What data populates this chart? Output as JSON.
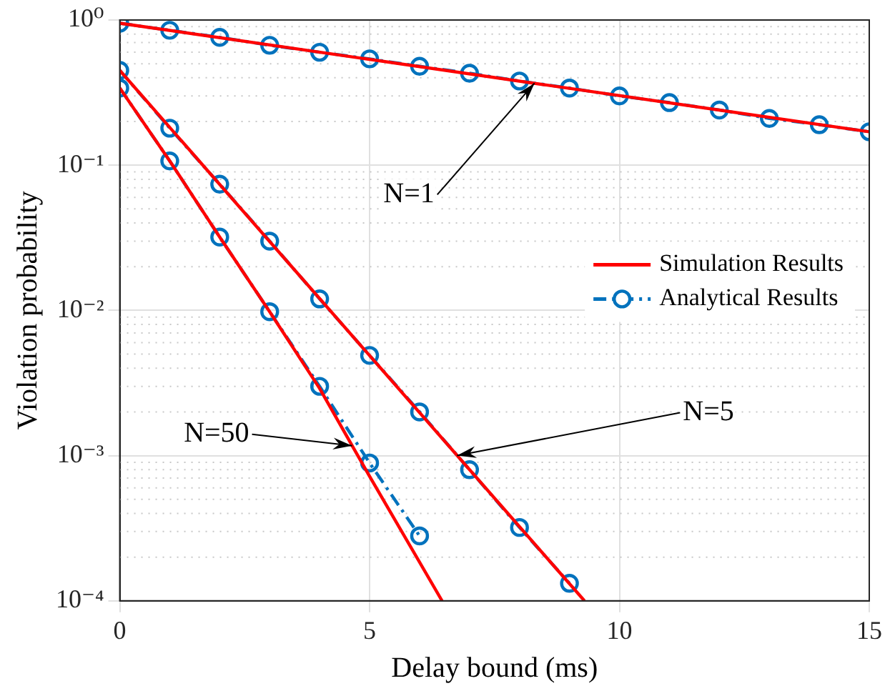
{
  "chart_data": {
    "type": "line",
    "xlabel": "Delay bound (ms)",
    "ylabel": "Violation probability",
    "log": "y",
    "grid": true,
    "legend": "right",
    "xlim": [
      0,
      15
    ],
    "xticks": [
      0,
      5,
      10,
      15
    ],
    "ylim": [
      0.0001,
      1
    ],
    "yticks": [
      {
        "value": 0.0001,
        "label": "10⁻⁴"
      },
      {
        "value": 0.001,
        "label": "10⁻³"
      },
      {
        "value": 0.01,
        "label": "10⁻²"
      },
      {
        "value": 0.1,
        "label": "10⁻¹"
      },
      {
        "value": 1,
        "label": "10⁰"
      }
    ],
    "series": [
      {
        "name": "Simulation Results",
        "color": "#ff0000",
        "line_style": "solid",
        "marker": "none",
        "x": [
          0,
          15
        ],
        "values": [
          0.95,
          0.17
        ]
      },
      {
        "name": "Analytical Results",
        "color": "#0072bd",
        "line_style": "dashed",
        "marker": "circle",
        "x": [
          0,
          1,
          2,
          3,
          4,
          5,
          6,
          7,
          8,
          9,
          10,
          11,
          12,
          13,
          14,
          15
        ],
        "values": [
          0.95,
          0.85,
          0.76,
          0.67,
          0.6,
          0.54,
          0.48,
          0.43,
          0.38,
          0.34,
          0.3,
          0.27,
          0.24,
          0.21,
          0.19,
          0.17
        ]
      },
      {
        "color": "#ff0000",
        "line_style": "solid",
        "marker": "none",
        "x": [
          0,
          9.3
        ],
        "values": [
          0.45,
          0.0001
        ]
      },
      {
        "color": "#0072bd",
        "line_style": "dashed",
        "marker": "circle",
        "x": [
          0,
          1,
          2,
          3,
          4,
          5,
          6,
          7,
          8,
          9
        ],
        "values": [
          0.45,
          0.18,
          0.074,
          0.03,
          0.012,
          0.0049,
          0.002,
          0.0008,
          0.00032,
          0.000132
        ]
      },
      {
        "color": "#ff0000",
        "line_style": "solid",
        "marker": "none",
        "x": [
          0,
          1,
          2,
          3,
          4,
          5,
          6.45
        ],
        "values": [
          0.34,
          0.107,
          0.032,
          0.0098,
          0.0029,
          0.00072,
          0.0001
        ]
      },
      {
        "color": "#0072bd",
        "line_style": "dashed",
        "marker": "circle",
        "x": [
          0,
          1,
          2,
          3,
          4,
          5,
          6
        ],
        "values": [
          0.34,
          0.107,
          0.032,
          0.0098,
          0.003,
          0.00089,
          0.00028
        ]
      }
    ],
    "annotations": [
      {
        "text": "N=1",
        "x": 8.3,
        "y": 0.367
      },
      {
        "text": "N=5",
        "x": 6.75,
        "y": 0.001
      },
      {
        "text": "N=50",
        "x": 4.65,
        "y": 0.00117
      }
    ]
  }
}
